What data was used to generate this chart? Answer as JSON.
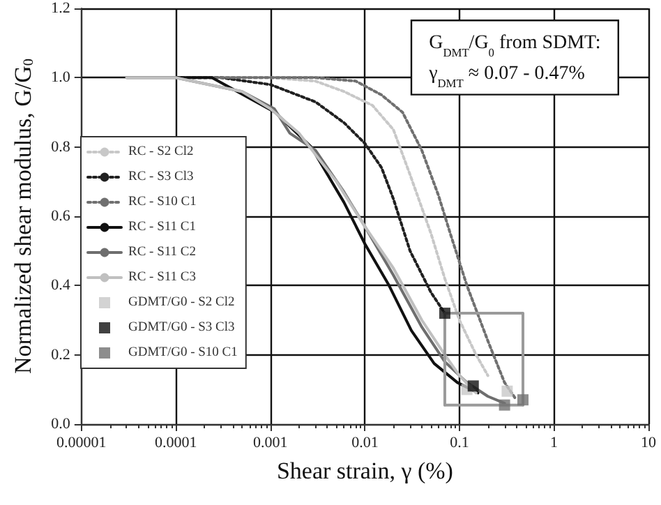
{
  "chart_data": {
    "type": "line",
    "xlabel": "Shear strain, γ (%)",
    "ylabel": "Normalized shear modulus, G/G$_{0}$",
    "annotations": [
      "G$_{DMT}$/G$_{0}$ from SDMT:",
      "γ$_{DMT}$ ≈ 0.07 - 0.47%"
    ],
    "log": "x",
    "grid": true,
    "legend": "left",
    "xlim": [
      1e-05,
      10
    ],
    "xticks": [
      {
        "value": 1e-05,
        "label": "0.00001"
      },
      {
        "value": 0.0001,
        "label": "0.0001"
      },
      {
        "value": 0.001,
        "label": "0.001"
      },
      {
        "value": 0.01,
        "label": "0.01"
      },
      {
        "value": 0.1,
        "label": "0.1"
      },
      1,
      10
    ],
    "ylim": [
      0,
      1.2
    ],
    "yticks": [
      {
        "value": 0,
        "label": "0.0"
      },
      {
        "value": 0.2,
        "label": "0.2"
      },
      {
        "value": 0.4,
        "label": "0.4"
      },
      {
        "value": 0.6,
        "label": "0.6"
      },
      {
        "value": 0.8,
        "label": "0.8"
      },
      {
        "value": 1,
        "label": "1.0"
      },
      {
        "value": 1.2,
        "label": "1.2"
      }
    ],
    "series": [
      {
        "name": "RC - S2 Cl2",
        "color": "#c8c8c8",
        "line_style": "dotted",
        "marker": "none",
        "x": [
          0.0001,
          0.001,
          0.003,
          0.006,
          0.012,
          0.02,
          0.03,
          0.05,
          0.07,
          0.1,
          0.15,
          0.2
        ],
        "values": [
          1.0,
          1.0,
          0.99,
          0.96,
          0.92,
          0.85,
          0.72,
          0.55,
          0.42,
          0.3,
          0.2,
          0.14
        ]
      },
      {
        "name": "RC - S3 Cl3",
        "color": "#202020",
        "line_style": "dotted",
        "marker": "none",
        "x": [
          0.0001,
          0.0003,
          0.001,
          0.003,
          0.006,
          0.01,
          0.015,
          0.02,
          0.03,
          0.05,
          0.07
        ],
        "values": [
          1.0,
          1.0,
          0.98,
          0.93,
          0.87,
          0.81,
          0.74,
          0.65,
          0.5,
          0.38,
          0.32
        ]
      },
      {
        "name": "RC - S10 C1",
        "color": "#707070",
        "line_style": "dotted",
        "marker": "none",
        "x": [
          0.0001,
          0.003,
          0.008,
          0.015,
          0.025,
          0.04,
          0.06,
          0.08,
          0.12,
          0.2,
          0.3,
          0.4
        ],
        "values": [
          1.0,
          1.0,
          0.99,
          0.95,
          0.9,
          0.79,
          0.66,
          0.55,
          0.4,
          0.24,
          0.12,
          0.07
        ]
      },
      {
        "name": "RC - S11 C1",
        "color": "#111111",
        "line_style": "solid",
        "marker": "none",
        "x": [
          3e-05,
          0.00024,
          0.00112,
          0.0027,
          0.006,
          0.01,
          0.018,
          0.031,
          0.054,
          0.095,
          0.157
        ],
        "values": [
          1.0,
          1.0,
          0.9,
          0.8,
          0.64,
          0.52,
          0.4,
          0.27,
          0.175,
          0.12,
          0.09
        ]
      },
      {
        "name": "RC - S11 C2",
        "color": "#6e6e6e",
        "line_style": "solid",
        "marker": "none",
        "x": [
          0.0001,
          0.0005,
          0.0011,
          0.0016,
          0.003,
          0.006,
          0.01,
          0.02,
          0.04,
          0.07,
          0.12,
          0.2,
          0.3
        ],
        "values": [
          1.0,
          0.96,
          0.91,
          0.84,
          0.79,
          0.67,
          0.57,
          0.43,
          0.28,
          0.18,
          0.12,
          0.08,
          0.06
        ]
      },
      {
        "name": "RC - S11 C3",
        "color": "#c0c0c0",
        "line_style": "solid",
        "marker": "none",
        "x": [
          3e-05,
          0.0001,
          0.0005,
          0.001,
          0.002,
          0.005,
          0.01,
          0.02,
          0.04,
          0.07,
          0.1,
          0.15
        ],
        "values": [
          1.0,
          1.0,
          0.96,
          0.91,
          0.84,
          0.7,
          0.57,
          0.45,
          0.3,
          0.2,
          0.14,
          0.09
        ]
      },
      {
        "name": "GDMT/G0 - S2 Cl2",
        "type": "scatter",
        "color": "#c8c8c8",
        "marker": "square",
        "x": [
          0.12,
          0.32
        ],
        "values": [
          0.1,
          0.095
        ]
      },
      {
        "name": "GDMT/G0 - S3 Cl3",
        "type": "scatter",
        "color": "#111111",
        "marker": "square",
        "x": [
          0.07,
          0.14
        ],
        "values": [
          0.32,
          0.11
        ]
      },
      {
        "name": "GDMT/G0 - S10 C1",
        "type": "scatter",
        "color": "#707070",
        "marker": "square",
        "x": [
          0.47,
          0.3
        ],
        "values": [
          0.07,
          0.055
        ]
      },
      {
        "type": "line",
        "color": "#9a9a9a",
        "line_style": "solid",
        "marker": "none",
        "x": [
          0.07,
          0.07,
          0.47,
          0.47
        ],
        "values": [
          0.055,
          0.32,
          0.32,
          0.055
        ]
      },
      {
        "type": "line",
        "color": "#9a9a9a",
        "line_style": "solid",
        "marker": "none",
        "x": [
          0.07,
          0.47
        ],
        "values": [
          0.055,
          0.055
        ]
      }
    ]
  }
}
